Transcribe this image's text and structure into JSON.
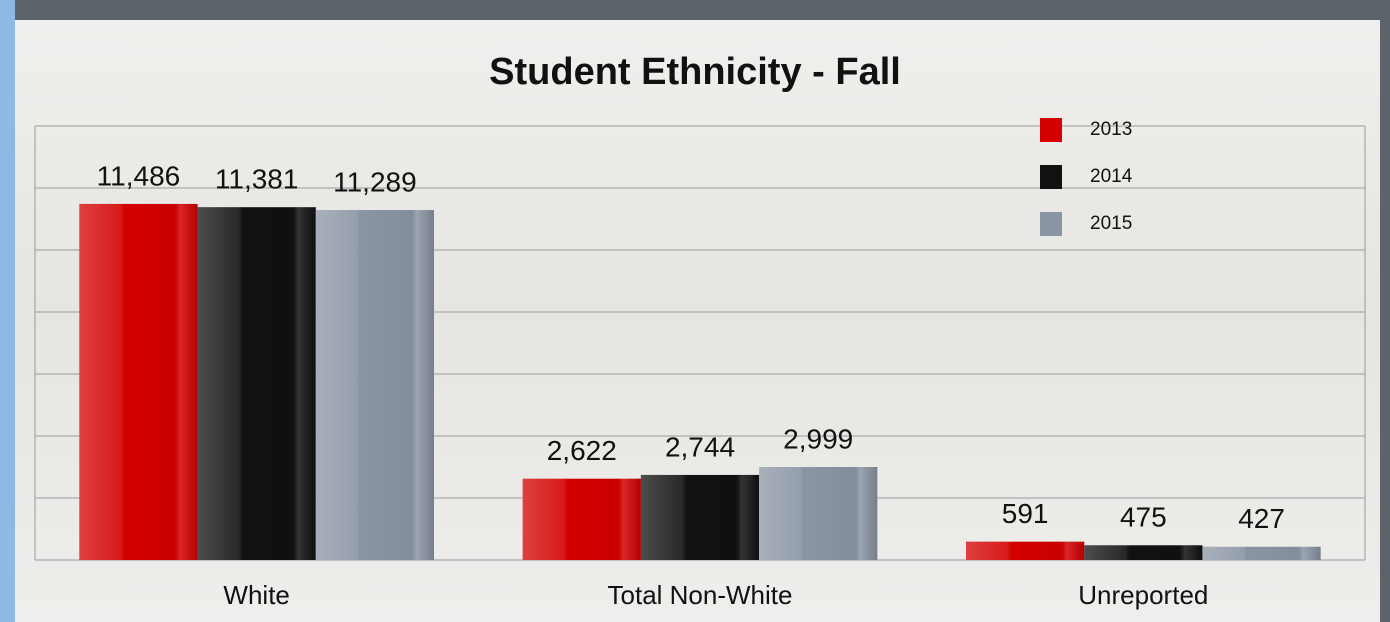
{
  "chart_data": {
    "type": "bar",
    "title": "Student Ethnicity - Fall",
    "categories": [
      "White",
      "Total Non-White",
      "Unreported"
    ],
    "series": [
      {
        "name": "2013",
        "color": "#d40000",
        "values": [
          11486,
          2622,
          591
        ],
        "value_labels": [
          "11,486",
          "2,622",
          "591"
        ]
      },
      {
        "name": "2014",
        "color": "#111111",
        "values": [
          11381,
          2744,
          475
        ],
        "value_labels": [
          "11,381",
          "2,744",
          "475"
        ]
      },
      {
        "name": "2015",
        "color": "#8a95a3",
        "values": [
          11289,
          2999,
          427
        ],
        "value_labels": [
          "11,289",
          "2,999",
          "427"
        ]
      }
    ],
    "ylim": [
      0,
      14000
    ],
    "yticks": [
      0,
      2000,
      4000,
      6000,
      8000,
      10000,
      12000,
      14000
    ],
    "grid": true,
    "legend": "top-right"
  }
}
